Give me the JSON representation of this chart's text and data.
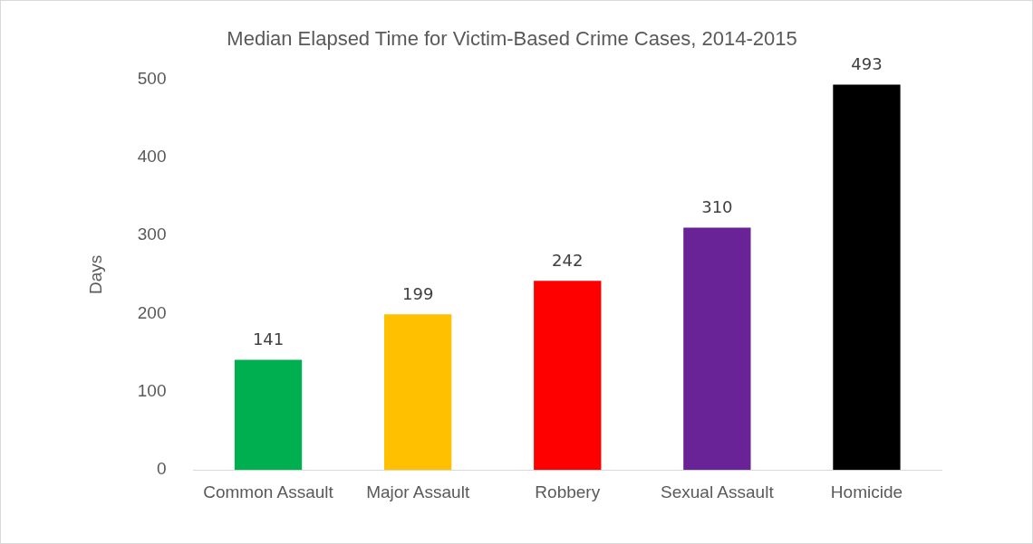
{
  "chart_data": {
    "type": "bar",
    "title": "Median Elapsed Time for Victim-Based Crime Cases, 2014-2015",
    "ylabel": "Days",
    "categories": [
      "Common Assault",
      "Major Assault",
      "Robbery",
      "Sexual Assault",
      "Homicide"
    ],
    "values": [
      141,
      199,
      242,
      310,
      493
    ],
    "colors": [
      "#00b050",
      "#ffc000",
      "#ff0000",
      "#6a2396",
      "#000000"
    ],
    "ylim": [
      0,
      500
    ],
    "yticks": [
      0,
      100,
      200,
      300,
      400,
      500
    ],
    "grid": false,
    "legend": false,
    "data_labels": true
  }
}
